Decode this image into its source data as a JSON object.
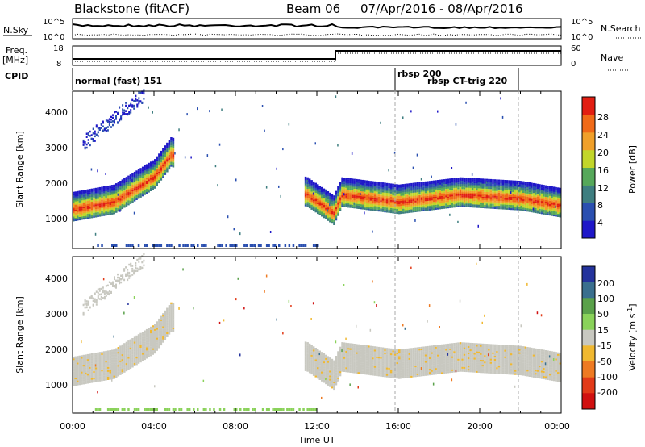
{
  "header": {
    "station": "Blackstone (fitACF)",
    "beam": "Beam 06",
    "date_range": "07/Apr/2016 - 08/Apr/2016"
  },
  "noise_panel": {
    "left_label": "N.Sky",
    "right_label": "N.Search",
    "left_ticks": [
      "10^5",
      "10^0"
    ],
    "right_ticks": [
      "10^5",
      "10^0"
    ]
  },
  "freq_panel": {
    "left_label_line1": "Freq.",
    "left_label_line2": "[MHz]",
    "right_label": "Nave",
    "left_ticks": [
      "18",
      "8"
    ],
    "right_ticks": [
      "60",
      "0"
    ]
  },
  "cpid_panel": {
    "label": "CPID",
    "programs": [
      {
        "name": "normal (fast) 151",
        "start_hour": 0
      },
      {
        "name": "rbsp 200",
        "start_hour": 16
      },
      {
        "name": "rbsp CT-trig 220",
        "start_hour": 22
      }
    ]
  },
  "axes": {
    "x_label": "Time UT",
    "x_ticks": [
      "00:00",
      "04:00",
      "08:00",
      "12:00",
      "16:00",
      "20:00",
      "00:00"
    ],
    "y_label": "Slant Range [km]",
    "y_ticks": [
      "1000",
      "2000",
      "3000",
      "4000"
    ]
  },
  "power_colorbar": {
    "label": "Power [dB]",
    "ticks": [
      "4",
      "8",
      "12",
      "16",
      "20",
      "24",
      "28"
    ],
    "colors": [
      "#1f17c8",
      "#2a4fb0",
      "#3e7e80",
      "#56a85a",
      "#c2d62a",
      "#f0a02a",
      "#f06a18",
      "#e21e12"
    ]
  },
  "velocity_colorbar": {
    "label": "Velocity [m s",
    "label_sup": "-1",
    "label_end": "]",
    "ticks": [
      "200",
      "100",
      "50",
      "15",
      "-15",
      "-50",
      "-100",
      "-200"
    ],
    "colors": [
      "#24339c",
      "#3a6f8e",
      "#5aa14a",
      "#8ad25a",
      "#c8c8c0",
      "#f0b830",
      "#ee7a22",
      "#e23a18",
      "#d01010"
    ]
  },
  "chart_data": {
    "type": "heatmap",
    "title": "Blackstone (fitACF) Beam 06 07/Apr/2016 - 08/Apr/2016",
    "x_range_hours": [
      0,
      24
    ],
    "y_range_km": [
      180,
      4500
    ],
    "series": [
      {
        "name": "Power",
        "approx_main_band": [
          {
            "t": 0,
            "range_km": 1300
          },
          {
            "t": 2,
            "range_km": 1500
          },
          {
            "t": 4,
            "range_km": 2200
          },
          {
            "t": 4.8,
            "range_km": 2800
          },
          {
            "t": 11.5,
            "range_km": 1700
          },
          {
            "t": 12.8,
            "range_km": 1200
          },
          {
            "t": 13.2,
            "range_km": 1700
          },
          {
            "t": 16,
            "range_km": 1500
          },
          {
            "t": 19,
            "range_km": 1700
          },
          {
            "t": 22,
            "range_km": 1600
          },
          {
            "t": 24,
            "range_km": 1400
          }
        ]
      }
    ],
    "nave_step": {
      "before_hour": 13,
      "after_value": 60
    }
  }
}
